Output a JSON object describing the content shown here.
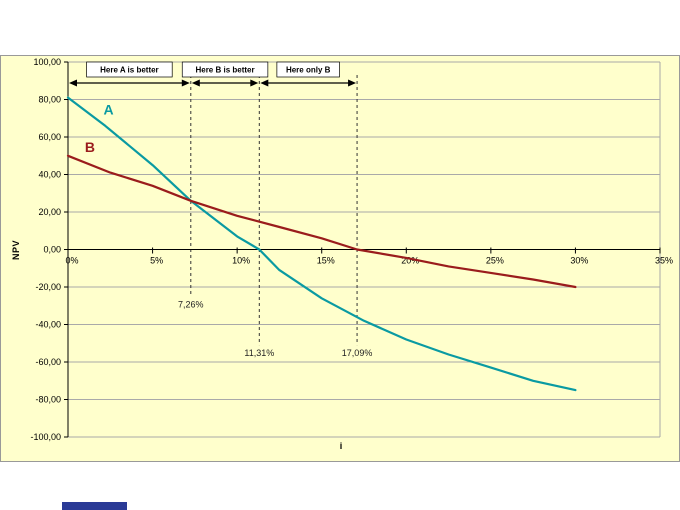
{
  "page": {
    "background": "#ffffff",
    "fragment_color": "#2a3a96"
  },
  "chart_data": {
    "type": "line",
    "title": "",
    "xlabel": "i",
    "ylabel": "NPV",
    "xlim": [
      0,
      35
    ],
    "ylim": [
      -100,
      100
    ],
    "plot_bg": "#ffffcc",
    "grid_color": "#a9a9a9",
    "legend_position": "inline-labels",
    "grid": "horizontal",
    "x_ticks": [
      "0%",
      "5%",
      "10%",
      "15%",
      "20%",
      "25%",
      "30%",
      "35%"
    ],
    "x_tick_values": [
      0,
      5,
      10,
      15,
      20,
      25,
      30,
      35
    ],
    "y_ticks": [
      "100,00",
      "80,00",
      "60,00",
      "40,00",
      "20,00",
      "0,00",
      "-20,00",
      "-40,00",
      "-60,00",
      "-80,00",
      "-100,00"
    ],
    "y_tick_values": [
      100,
      80,
      60,
      40,
      20,
      0,
      -20,
      -40,
      -60,
      -80,
      -100
    ],
    "series": [
      {
        "name": "A",
        "color": "#0a9aa2",
        "label_pos": [
          2.1,
          72
        ],
        "points": [
          [
            0,
            81
          ],
          [
            2.2,
            66
          ],
          [
            5,
            45
          ],
          [
            7.26,
            26
          ],
          [
            10,
            7
          ],
          [
            11.31,
            0
          ],
          [
            12.5,
            -11
          ],
          [
            15,
            -26
          ],
          [
            17.5,
            -38
          ],
          [
            20,
            -48
          ],
          [
            22.5,
            -56
          ],
          [
            25,
            -63
          ],
          [
            27.5,
            -70
          ],
          [
            30,
            -75
          ]
        ]
      },
      {
        "name": "B",
        "color": "#9a1c1c",
        "label_pos": [
          1.0,
          52
        ],
        "points": [
          [
            0,
            50
          ],
          [
            2.5,
            41
          ],
          [
            5,
            34
          ],
          [
            7.26,
            26
          ],
          [
            10,
            18
          ],
          [
            12.5,
            12
          ],
          [
            15,
            6
          ],
          [
            17.09,
            0
          ],
          [
            20,
            -4.5
          ],
          [
            22.5,
            -9
          ],
          [
            25,
            -12.5
          ],
          [
            27.5,
            -16
          ],
          [
            30,
            -20
          ]
        ]
      }
    ],
    "markers": [
      {
        "x": 7.26,
        "label": "7,26%",
        "line_end": -25
      },
      {
        "x": 11.31,
        "label": "11,31%",
        "line_end": -51
      },
      {
        "x": 17.09,
        "label": "17,09%",
        "line_end": -51
      }
    ],
    "annotations": [
      {
        "label": "Here A is better",
        "from": 0,
        "to": 7.26
      },
      {
        "label": "Here B is better",
        "from": 7.26,
        "to": 11.31
      },
      {
        "label": "Here only B",
        "from": 11.31,
        "to": 17.09
      }
    ]
  }
}
